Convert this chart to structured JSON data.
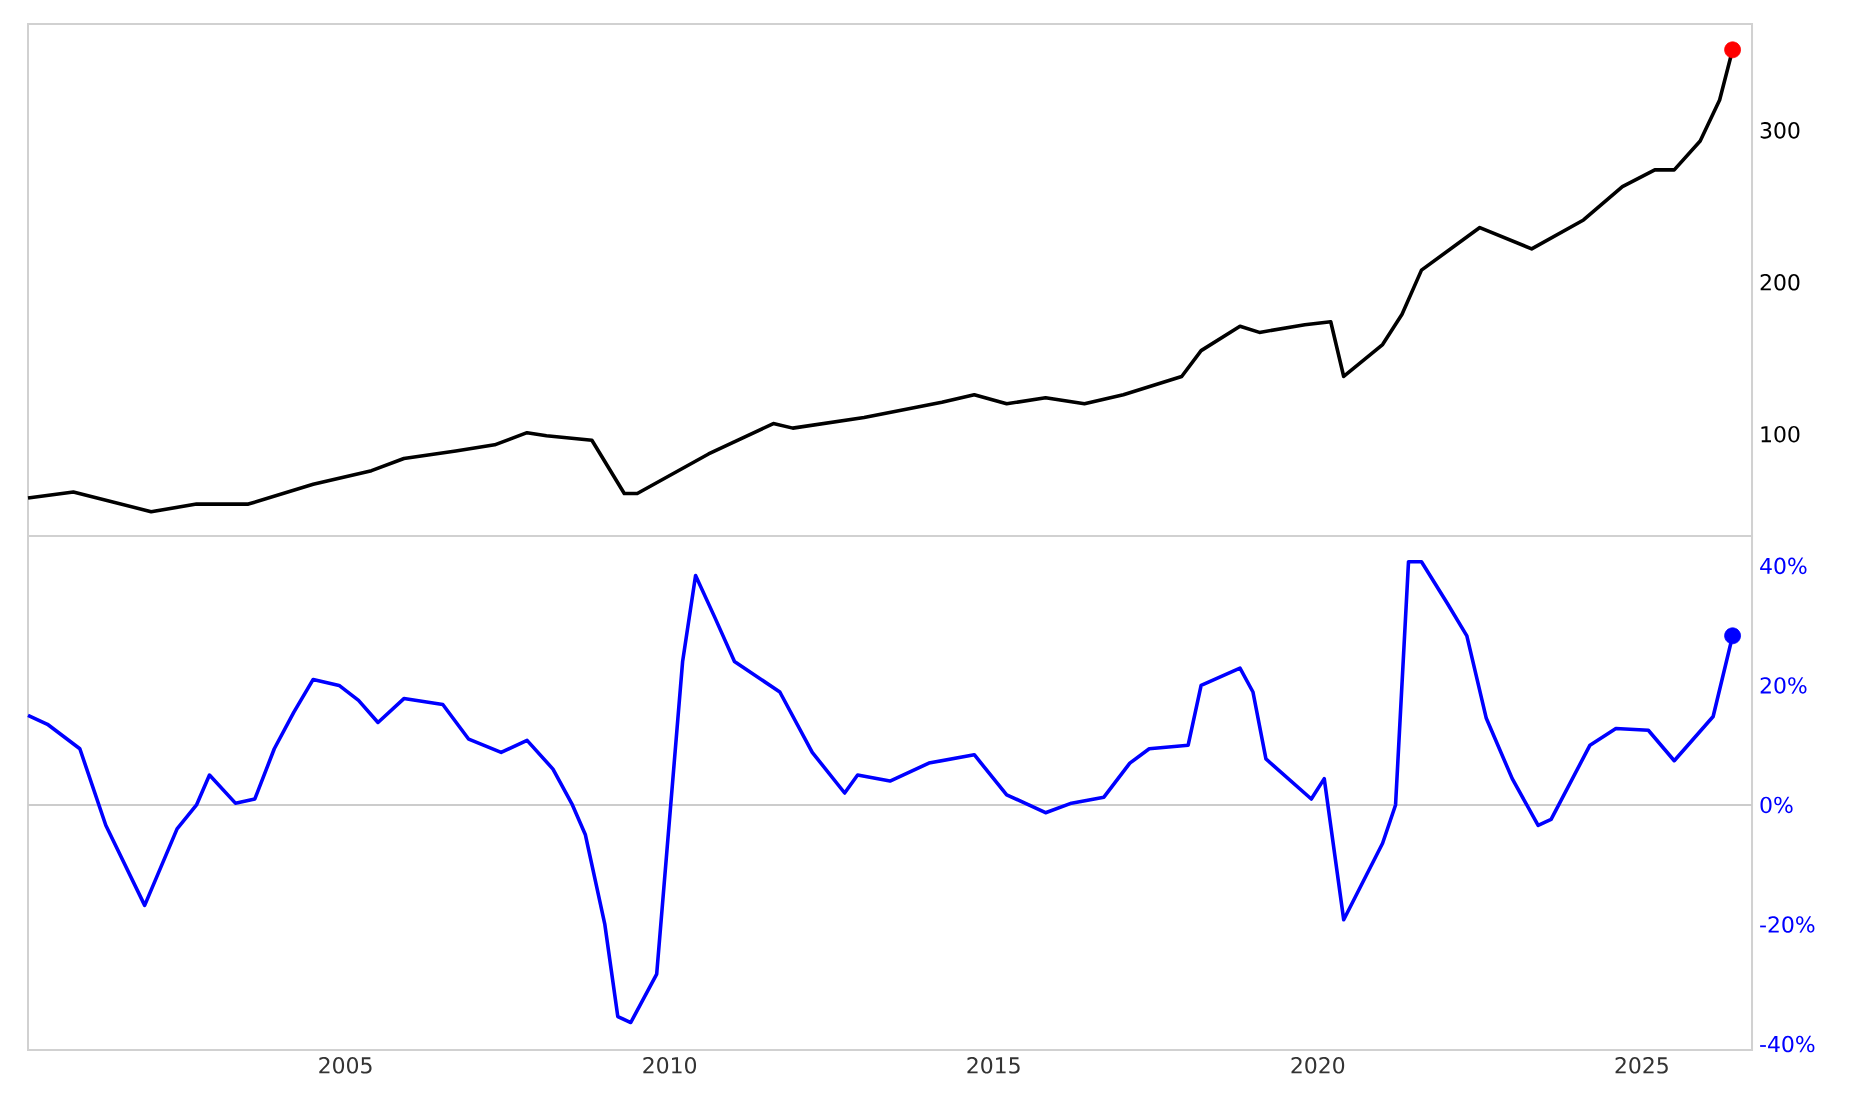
{
  "chart_data": [
    {
      "type": "line",
      "xlim": [
        2000.1,
        2026.7
      ],
      "xticks": [
        2005,
        2010,
        2015,
        2020,
        2025
      ],
      "ylim": [
        33,
        370
      ],
      "yticks": [
        100,
        200,
        300
      ],
      "tick_labels": "y",
      "series": [
        {
          "color": "#000000",
          "x": [
            2000.1,
            2000.8,
            2002.0,
            2002.7,
            2003.5,
            2004.5,
            2005.4,
            2005.9,
            2006.7,
            2007.3,
            2007.8,
            2008.1,
            2008.8,
            2009.3,
            2009.5,
            2010.6,
            2011.6,
            2011.9,
            2013.0,
            2014.2,
            2014.7,
            2015.2,
            2015.8,
            2016.4,
            2017.0,
            2017.9,
            2018.2,
            2018.8,
            2019.1,
            2019.8,
            2020.2,
            2020.4,
            2021.0,
            2021.3,
            2021.6,
            2022.5,
            2023.3,
            2024.1,
            2024.7,
            2025.2,
            2025.5,
            2025.9,
            2026.2,
            2026.4
          ],
          "values": [
            58,
            62,
            49,
            54,
            54,
            67,
            76,
            84,
            89,
            93,
            101,
            99,
            96,
            61,
            61,
            87,
            107,
            104,
            111,
            121,
            126,
            120,
            124,
            120,
            126,
            138,
            155,
            171,
            167,
            172,
            174,
            138,
            159,
            179,
            208,
            236,
            222,
            241,
            263,
            274,
            274,
            293,
            320,
            353
          ]
        },
        {
          "type": "scatter",
          "color": "#ff0000",
          "x": [
            2026.4
          ],
          "values": [
            353
          ]
        }
      ]
    },
    {
      "type": "line",
      "xlim": [
        2000.1,
        2026.7
      ],
      "xticks": [
        2005,
        2010,
        2015,
        2020,
        2025
      ],
      "ylim": [
        -41,
        45
      ],
      "yticks": [
        {
          "value": -40,
          "label": "-40%"
        },
        {
          "value": -20,
          "label": "-20%"
        },
        {
          "value": 0,
          "label": "0%"
        },
        {
          "value": 20,
          "label": "20%"
        },
        {
          "value": 40,
          "label": "40%"
        }
      ],
      "ref_lines": [
        {
          "axis": "y",
          "value": 0,
          "color": "#cccccc"
        }
      ],
      "series": [
        {
          "color": "#0000ff",
          "x": [
            2000.1,
            2000.4,
            2000.9,
            2001.3,
            2001.9,
            2002.4,
            2002.7,
            2002.9,
            2003.3,
            2003.6,
            2003.9,
            2004.2,
            2004.5,
            2004.9,
            2005.2,
            2005.5,
            2005.9,
            2006.5,
            2006.9,
            2007.4,
            2007.8,
            2008.2,
            2008.5,
            2008.7,
            2009.0,
            2009.2,
            2009.4,
            2009.8,
            2010.2,
            2010.4,
            2010.7,
            2011.0,
            2011.7,
            2012.2,
            2012.7,
            2012.9,
            2013.4,
            2014.0,
            2014.7,
            2015.2,
            2015.8,
            2016.2,
            2016.7,
            2017.1,
            2017.4,
            2018.0,
            2018.2,
            2018.8,
            2019.0,
            2019.2,
            2019.9,
            2020.1,
            2020.4,
            2021.0,
            2021.2,
            2021.4,
            2021.6,
            2022.0,
            2022.3,
            2022.6,
            2023.0,
            2023.4,
            2023.6,
            2024.2,
            2024.6,
            2025.1,
            2025.5,
            2026.1,
            2026.4
          ],
          "values": [
            15,
            13.5,
            9.4,
            -3.4,
            -16.8,
            -4,
            0,
            5,
            0.3,
            1,
            9.4,
            15.5,
            21,
            20,
            17.5,
            13.8,
            17.8,
            16.8,
            11,
            8.8,
            10.8,
            6,
            0,
            -5,
            -20,
            -35.4,
            -36.4,
            -28.3,
            24,
            38.4,
            31.3,
            24,
            18.9,
            8.8,
            2,
            5,
            4,
            7,
            8.4,
            1.7,
            -1.3,
            0.3,
            1.3,
            7,
            9.4,
            10,
            20,
            22.9,
            18.9,
            7.7,
            1,
            4.4,
            -19.2,
            -6.4,
            0,
            40.7,
            40.7,
            33.7,
            28.3,
            14.5,
            4.4,
            -3.4,
            -2.4,
            10,
            12.8,
            12.5,
            7.4,
            14.8,
            28.3
          ]
        },
        {
          "type": "scatter",
          "color": "#0000ff",
          "x": [
            2026.4
          ],
          "values": [
            28.3
          ]
        }
      ]
    }
  ]
}
